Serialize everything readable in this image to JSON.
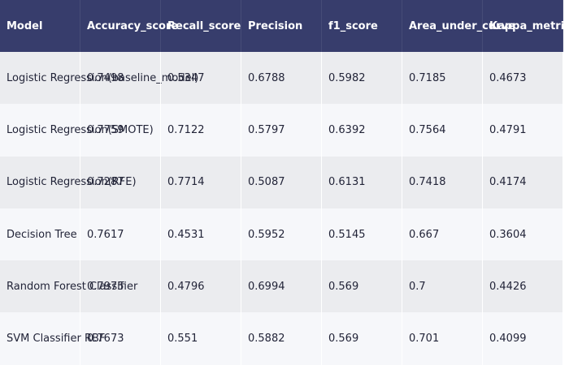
{
  "table": {
    "headers": [
      "Model",
      "Accuracy_score",
      "Recall_score",
      "Precision",
      "f1_score",
      "Area_under_curve",
      "Kappa_metric"
    ],
    "rows": [
      [
        "Logistic Regression(baseline_model)",
        "0.7498",
        "0.5347",
        "0.6788",
        "0.5982",
        "0.7185",
        "0.4673"
      ],
      [
        "Logistic Regression(SMOTE)",
        "0.7759",
        "0.7122",
        "0.5797",
        "0.6392",
        "0.7564",
        "0.4791"
      ],
      [
        "Logistic Regression(RFE)",
        "0.7287",
        "0.7714",
        "0.5087",
        "0.6131",
        "0.7418",
        "0.4174"
      ],
      [
        "Decision Tree",
        "0.7617",
        "0.4531",
        "0.5952",
        "0.5145",
        "0.667",
        "0.3604"
      ],
      [
        "Random Forest Classifier",
        "0.7975",
        "0.4796",
        "0.6994",
        "0.569",
        "0.7",
        "0.4426"
      ],
      [
        "SVM Classifier RBF",
        "0.7673",
        "0.551",
        "0.5882",
        "0.569",
        "0.701",
        "0.4099"
      ]
    ]
  },
  "colors": {
    "header_bg": "#373d6c",
    "row_odd": "#ebecef",
    "row_even": "#f6f7fa",
    "text": "#222438"
  }
}
